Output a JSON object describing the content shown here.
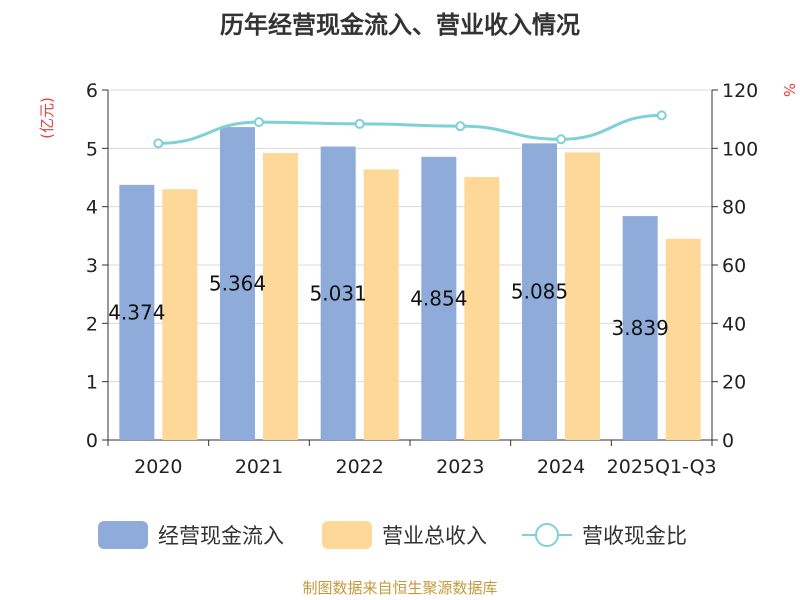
{
  "chart_data": {
    "type": "bar",
    "title": "历年经营现金流入、营业收入情况",
    "categories": [
      "2020",
      "2021",
      "2022",
      "2023",
      "2024",
      "2025Q1-Q3"
    ],
    "series": [
      {
        "name": "经营现金流入",
        "type": "bar",
        "axis": "left",
        "color": "#8eabd9",
        "values": [
          4.374,
          5.364,
          5.031,
          4.854,
          5.085,
          3.839
        ],
        "labels": [
          "4.374",
          "5.364",
          "5.031",
          "4.854",
          "5.085",
          "3.839"
        ]
      },
      {
        "name": "营业总收入",
        "type": "bar",
        "axis": "left",
        "color": "#fdd898",
        "values": [
          4.3,
          4.92,
          4.64,
          4.51,
          4.93,
          3.45
        ]
      },
      {
        "name": "营收现金比",
        "type": "line",
        "axis": "right",
        "color": "#7fd1d8",
        "values": [
          101.7,
          109.0,
          108.4,
          107.6,
          103.1,
          111.3
        ]
      }
    ],
    "y_left": {
      "label": "(亿元)",
      "min": 0,
      "max": 6,
      "ticks": [
        "0",
        "1",
        "2",
        "3",
        "4",
        "5",
        "6"
      ]
    },
    "y_right": {
      "label": "%",
      "min": 0,
      "max": 120,
      "ticks": [
        "0",
        "20",
        "40",
        "60",
        "80",
        "100",
        "120"
      ]
    },
    "gridlines": true,
    "legend_position": "bottom",
    "source": "制图数据来自恒生聚源数据库"
  }
}
